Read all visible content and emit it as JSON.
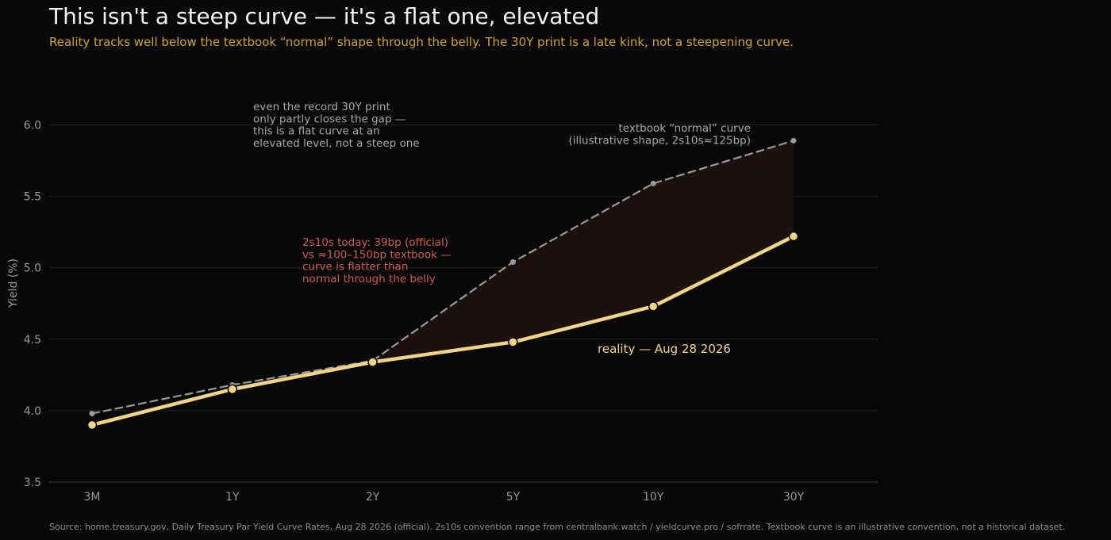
{
  "title": "This isn't a steep curve — it's a flat one, elevated",
  "subtitle": "Reality tracks well below the textbook “normal” shape through the belly. The 30Y print is a late kink, not a steepening curve.",
  "source": "Source: home.treasury.gov, Daily Treasury Par Yield Curve Rates, Aug 28 2026 (official). 2s10s convention range from centralbank.watch / yieldcurve.pro / sofrrate. Textbook curve is an illustrative convention, not a historical dataset.",
  "chart_data": {
    "type": "line",
    "categories": [
      "3M",
      "1Y",
      "2Y",
      "5Y",
      "10Y",
      "30Y"
    ],
    "ylabel": "Yield (%)",
    "xlabel": "",
    "ylim": [
      3.5,
      6.25
    ],
    "yticks": [
      "3.5",
      "4.0",
      "4.5",
      "5.0",
      "5.5",
      "6.0"
    ],
    "grid": "horizontal",
    "series": [
      {
        "key": "textbook",
        "values": [
          3.98,
          4.18,
          4.35,
          5.04,
          5.59,
          5.89
        ],
        "color": "#9a9a9a",
        "style": "dashed"
      },
      {
        "key": "reality",
        "values": [
          3.9,
          4.15,
          4.34,
          4.48,
          4.73,
          5.22
        ],
        "color": "#f2d488",
        "style": "solid"
      }
    ],
    "gap_fill_color": "#1d1111",
    "annotations": {
      "textbook_label": [
        "textbook “normal” curve",
        "(illustrative shape, 2s10s≈125bp)"
      ],
      "reality_label": [
        "reality — Aug 28 2026"
      ],
      "gap_note": [
        "even the record 30Y print",
        "only partly closes the gap —",
        "this is a flat curve at an",
        "elevated level, not a steep one"
      ],
      "spread_note": [
        "2s10s today: 39bp (official)",
        "vs ≈100–150bp textbook —",
        "curve is flatter than",
        "normal through the belly"
      ]
    },
    "annotation_colors": {
      "gap_note": "#a8a8a8",
      "spread_note": "#cf5d4f",
      "textbook_label": "#a8a8a8",
      "reality_label": "#f2d488"
    }
  }
}
